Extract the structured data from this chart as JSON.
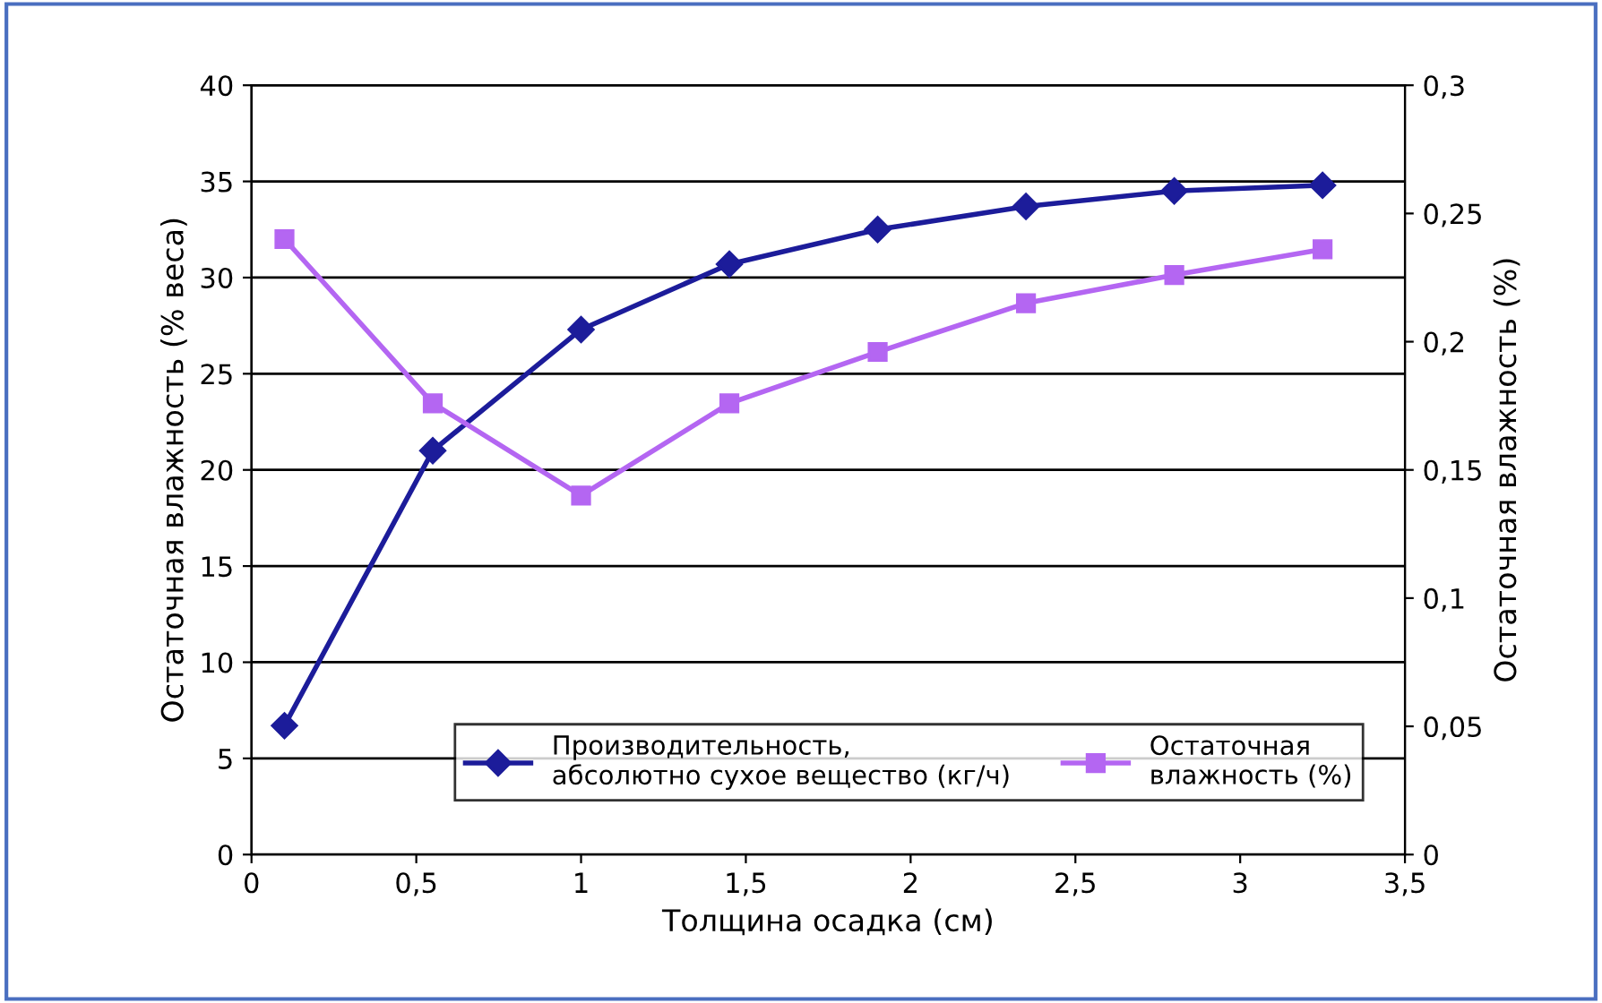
{
  "chart_data": {
    "type": "line",
    "xlabel": "Толщина осадка (см)",
    "ylabel": "Остаточная влажность (% веса)",
    "y2label": "Остаточная влажность (%)",
    "x": [
      0.1,
      0.55,
      1.0,
      1.45,
      1.9,
      2.35,
      2.8,
      3.25
    ],
    "series": [
      {
        "name": "Производительность, абсолютно сухое вещество (кг/ч)",
        "color": "#1c1c9a",
        "marker": "diamond",
        "values": [
          6.7,
          21.0,
          27.3,
          30.7,
          32.5,
          33.7,
          34.5,
          34.8
        ]
      },
      {
        "name": "Остаточная влажность (%)",
        "color": "#b466f2",
        "marker": "square",
        "axis": "y2",
        "values": [
          0.24,
          0.176,
          0.14,
          0.176,
          0.196,
          0.215,
          0.226,
          0.236
        ]
      }
    ],
    "xlim": [
      0,
      3.5
    ],
    "xticks": [
      0,
      {
        "value": 0.5,
        "label": "0,5"
      },
      1,
      {
        "value": 1.5,
        "label": "1,5"
      },
      2,
      {
        "value": 2.5,
        "label": "2,5"
      },
      3,
      {
        "value": 3.5,
        "label": "3,5"
      }
    ],
    "ylim": [
      0,
      40
    ],
    "yticks": [
      0,
      5,
      10,
      15,
      20,
      25,
      30,
      35,
      40
    ],
    "y2lim": [
      0,
      0.3
    ],
    "y2ticks": [
      0,
      {
        "value": 0.05,
        "label": "0,05"
      },
      {
        "value": 0.1,
        "label": "0,1"
      },
      {
        "value": 0.15,
        "label": "0,15"
      },
      {
        "value": 0.2,
        "label": "0,2"
      },
      {
        "value": 0.25,
        "label": "0,25"
      },
      {
        "value": 0.3,
        "label": "0,3"
      }
    ],
    "grid": "y",
    "legend": "bottom"
  }
}
